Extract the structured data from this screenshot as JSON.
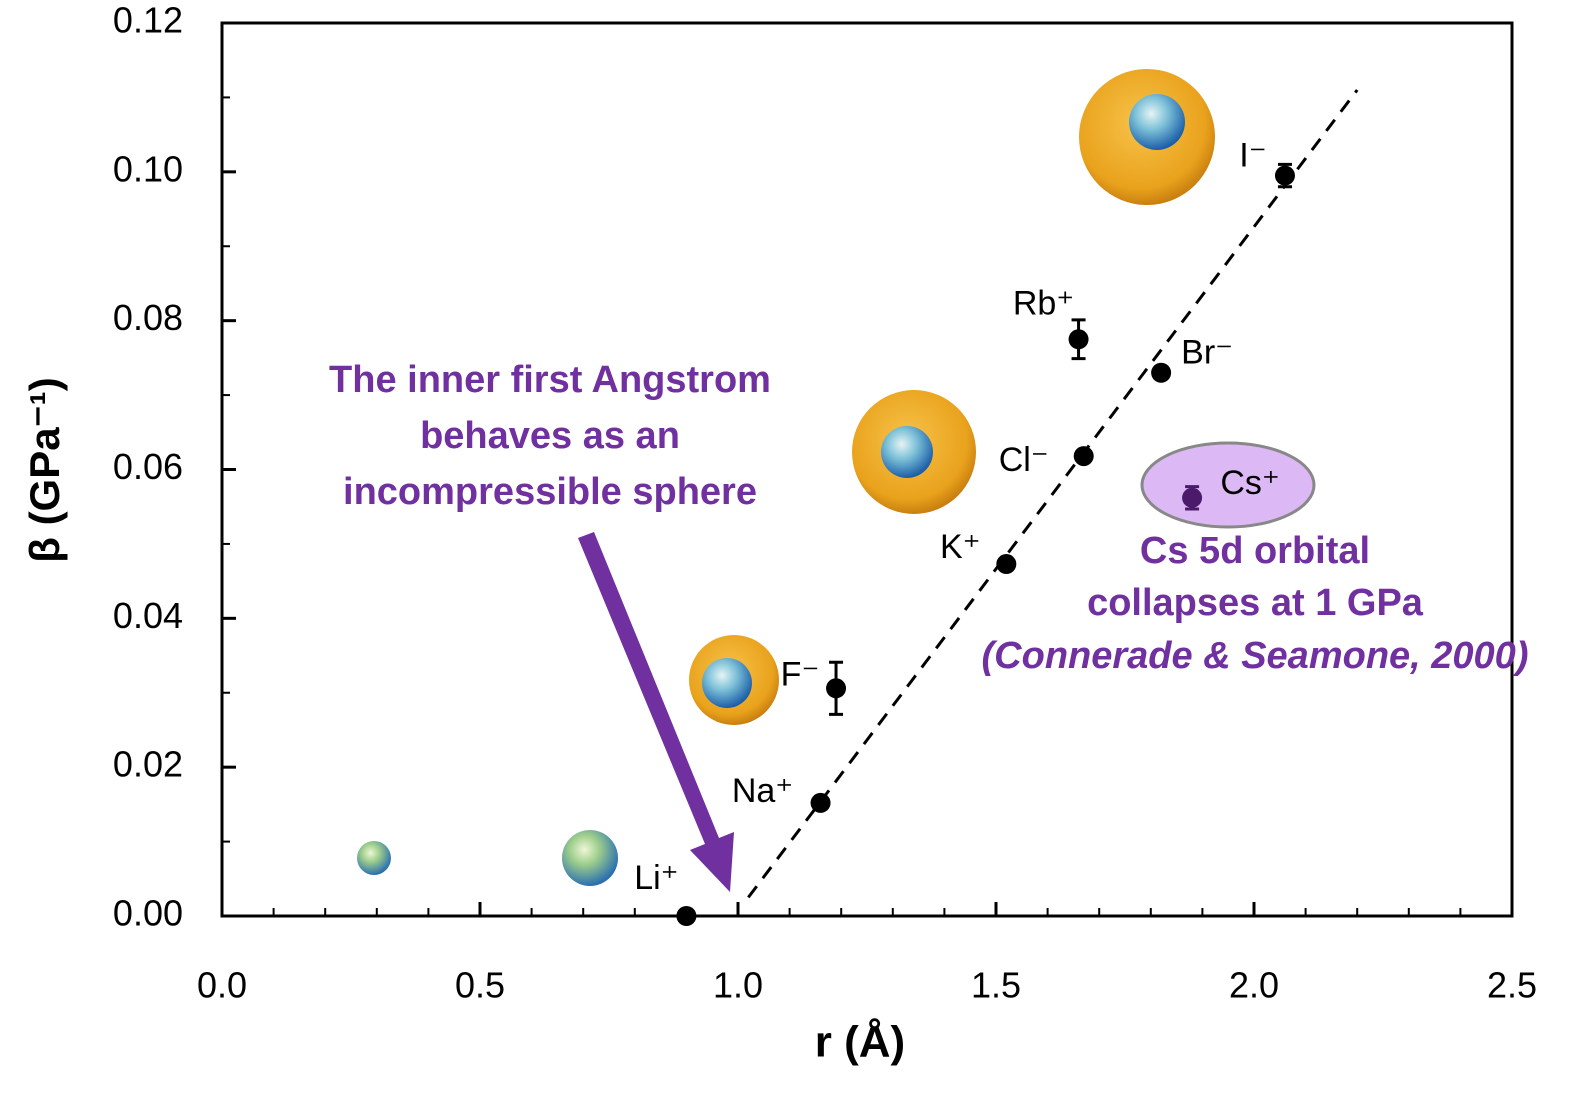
{
  "chart_data": {
    "type": "scatter",
    "xlabel": "r (Å)",
    "ylabel": "β (GPa⁻¹)",
    "x": [
      0.9,
      1.16,
      1.19,
      1.52,
      1.67,
      1.66,
      1.82,
      1.88,
      2.06
    ],
    "y": [
      0.0,
      0.0152,
      0.0306,
      0.0473,
      0.0618,
      0.0775,
      0.073,
      0.0562,
      0.0995
    ],
    "errors": [
      null,
      null,
      0.0035,
      null,
      null,
      0.0026,
      null,
      0.0015,
      0.0015
    ],
    "labels": [
      "Li⁺",
      "Na⁺",
      "F⁻",
      "K⁺",
      "Cl⁻",
      "Rb⁺",
      "Br⁻",
      "Cs⁺",
      "I⁻"
    ],
    "colors": [
      "#000000",
      "#000000",
      "#000000",
      "#000000",
      "#000000",
      "#000000",
      "#000000",
      "#4b1a6b",
      "#000000"
    ],
    "fit": {
      "x": [
        1.02,
        2.2
      ],
      "y": [
        0.0025,
        0.111
      ]
    },
    "xlim": [
      0,
      2.5
    ],
    "xticks": [
      {
        "value": 0,
        "label": "0.0"
      },
      {
        "value": 0.5,
        "label": "0.5"
      },
      {
        "value": 1,
        "label": "1.0"
      },
      {
        "value": 1.5,
        "label": "1.5"
      },
      {
        "value": 2,
        "label": "2.0"
      },
      {
        "value": 2.5,
        "label": "2.5"
      }
    ],
    "ylim": [
      0,
      0.12
    ],
    "yticks": [
      {
        "value": 0,
        "label": "0.00"
      },
      {
        "value": 0.02,
        "label": "0.02"
      },
      {
        "value": 0.04,
        "label": "0.04"
      },
      {
        "value": 0.06,
        "label": "0.06"
      },
      {
        "value": 0.08,
        "label": "0.08"
      },
      {
        "value": 0.1,
        "label": "0.10"
      },
      {
        "value": 0.12,
        "label": "0.12"
      }
    ],
    "annotations": [
      [
        "The inner first Angstrom",
        "behaves as an",
        "incompressible sphere"
      ],
      [
        "Cs 5d orbital",
        "collapses at 1 GPa",
        "(Connerade & Seamone, 2000)"
      ]
    ]
  }
}
